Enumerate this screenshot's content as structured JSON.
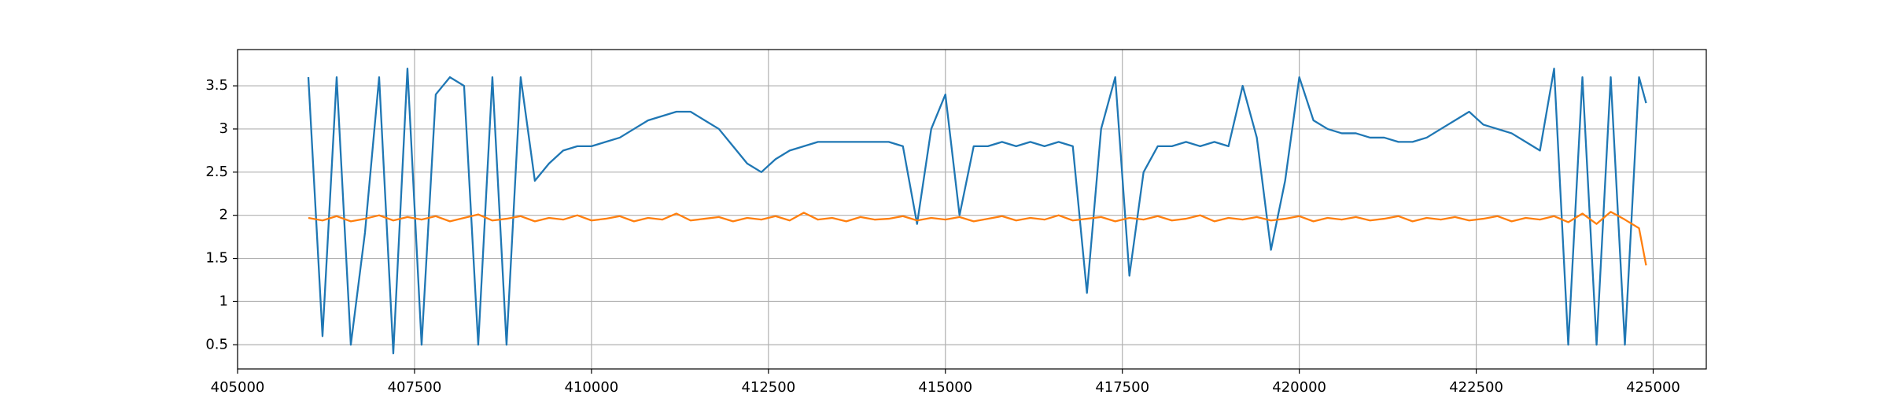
{
  "chart_data": {
    "type": "line",
    "x": [
      406000,
      406200,
      406400,
      406600,
      406800,
      407000,
      407200,
      407400,
      407600,
      407800,
      408000,
      408200,
      408400,
      408600,
      408800,
      409000,
      409200,
      409400,
      409600,
      409800,
      410000,
      410200,
      410400,
      410600,
      410800,
      411000,
      411200,
      411400,
      411600,
      411800,
      412000,
      412200,
      412400,
      412600,
      412800,
      413000,
      413200,
      413400,
      413600,
      413800,
      414000,
      414200,
      414400,
      414600,
      414800,
      415000,
      415200,
      415400,
      415600,
      415800,
      416000,
      416200,
      416400,
      416600,
      416800,
      417000,
      417200,
      417400,
      417600,
      417800,
      418000,
      418200,
      418400,
      418600,
      418800,
      419000,
      419200,
      419400,
      419600,
      419800,
      420000,
      420200,
      420400,
      420600,
      420800,
      421000,
      421200,
      421400,
      421600,
      421800,
      422000,
      422200,
      422400,
      422600,
      422800,
      423000,
      423200,
      423400,
      423600,
      423800,
      424000,
      424200,
      424400,
      424600,
      424800,
      424900
    ],
    "series": [
      {
        "color": "#1f77b4",
        "values": [
          3.6,
          0.6,
          3.6,
          0.5,
          1.8,
          3.6,
          0.4,
          3.7,
          0.5,
          3.4,
          3.6,
          3.5,
          0.5,
          3.6,
          0.5,
          3.6,
          2.4,
          2.6,
          2.75,
          2.8,
          2.8,
          2.85,
          2.9,
          3.0,
          3.1,
          3.15,
          3.2,
          3.2,
          3.1,
          3.0,
          2.8,
          2.6,
          2.5,
          2.65,
          2.75,
          2.8,
          2.85,
          2.85,
          2.85,
          2.85,
          2.85,
          2.85,
          2.8,
          1.9,
          3.0,
          3.4,
          2.0,
          2.8,
          2.8,
          2.85,
          2.8,
          2.85,
          2.8,
          2.85,
          2.8,
          1.1,
          3.0,
          3.6,
          1.3,
          2.5,
          2.8,
          2.8,
          2.85,
          2.8,
          2.85,
          2.8,
          3.5,
          2.9,
          1.6,
          2.4,
          3.6,
          3.1,
          3.0,
          2.95,
          2.95,
          2.9,
          2.9,
          2.85,
          2.85,
          2.9,
          3.0,
          3.1,
          3.2,
          3.05,
          3.0,
          2.95,
          2.85,
          2.75,
          3.7,
          0.5,
          3.6,
          0.5,
          3.6,
          0.5,
          3.6,
          3.3
        ]
      },
      {
        "color": "#ff7f0e",
        "values": [
          1.97,
          1.94,
          1.99,
          1.93,
          1.96,
          2.0,
          1.94,
          1.98,
          1.95,
          1.99,
          1.93,
          1.97,
          2.01,
          1.94,
          1.96,
          1.99,
          1.93,
          1.97,
          1.95,
          2.0,
          1.94,
          1.96,
          1.99,
          1.93,
          1.97,
          1.95,
          2.02,
          1.94,
          1.96,
          1.98,
          1.93,
          1.97,
          1.95,
          1.99,
          1.94,
          2.03,
          1.95,
          1.97,
          1.93,
          1.98,
          1.95,
          1.96,
          1.99,
          1.94,
          1.97,
          1.95,
          1.98,
          1.93,
          1.96,
          1.99,
          1.94,
          1.97,
          1.95,
          2.0,
          1.94,
          1.96,
          1.98,
          1.93,
          1.97,
          1.95,
          1.99,
          1.94,
          1.96,
          2.0,
          1.93,
          1.97,
          1.95,
          1.98,
          1.94,
          1.96,
          1.99,
          1.93,
          1.97,
          1.95,
          1.98,
          1.94,
          1.96,
          1.99,
          1.93,
          1.97,
          1.95,
          1.98,
          1.94,
          1.96,
          1.99,
          1.93,
          1.97,
          1.95,
          1.99,
          1.92,
          2.02,
          1.9,
          2.04,
          1.95,
          1.85,
          1.42
        ]
      }
    ],
    "xlim": [
      405000,
      425750
    ],
    "ylim": [
      0.22,
      3.92
    ],
    "xticks": [
      405000,
      407500,
      410000,
      412500,
      415000,
      417500,
      420000,
      422500,
      425000
    ],
    "yticks": [
      0.5,
      1.0,
      1.5,
      2.0,
      2.5,
      3.0,
      3.5
    ],
    "grid": true
  }
}
